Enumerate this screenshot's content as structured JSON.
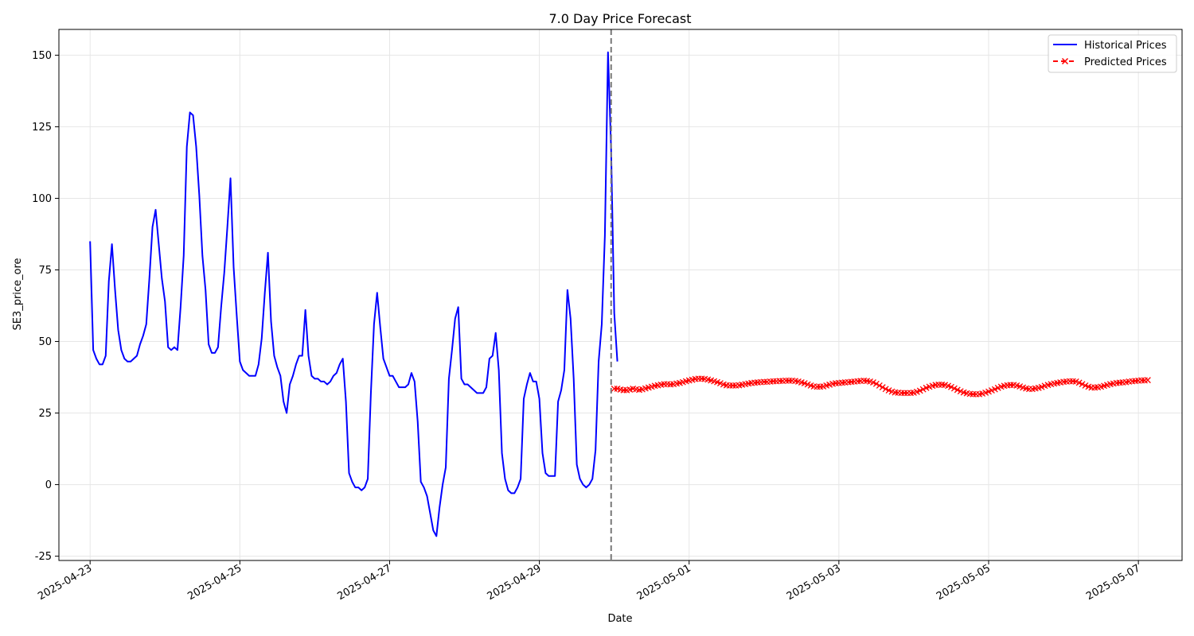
{
  "chart_data": {
    "type": "line",
    "title": "7.0 Day Price Forecast",
    "xlabel": "Date",
    "ylabel": "SE3_price_ore",
    "x_range": [
      "2025-04-22T14:00",
      "2025-05-07T14:00"
    ],
    "ylim": [
      -26.5,
      159
    ],
    "y_ticks": [
      -25,
      0,
      25,
      50,
      75,
      100,
      125,
      150
    ],
    "x_ticks": [
      "2025-04-23",
      "2025-04-25",
      "2025-04-27",
      "2025-04-29",
      "2025-05-01",
      "2025-05-03",
      "2025-05-05",
      "2025-05-07"
    ],
    "grid": true,
    "legend_position": "top-right",
    "forecast_start": "2025-04-29T23:00",
    "colors": {
      "historical": "#0000ff",
      "predicted": "#ff0000",
      "divider": "#777777",
      "grid": "#e6e6e6"
    },
    "series": [
      {
        "name": "Historical Prices",
        "style": "solid",
        "start": "2025-04-23T00:00",
        "step_hours": 1,
        "values": [
          85,
          47,
          44,
          42,
          42,
          45,
          71,
          84,
          68,
          54,
          47,
          44,
          43,
          43,
          44,
          45,
          49,
          52,
          56,
          72,
          90,
          96,
          84,
          72,
          64,
          48,
          47,
          48,
          47,
          62,
          80,
          118,
          130,
          129,
          118,
          101,
          80,
          68,
          49,
          46,
          46,
          48,
          62,
          74,
          90,
          107,
          76,
          59,
          43,
          40,
          39,
          38,
          38,
          38,
          42,
          51,
          67,
          81,
          57,
          45,
          41,
          38,
          29,
          25,
          35,
          38,
          42,
          45,
          45,
          61,
          45,
          38,
          37,
          37,
          36,
          36,
          35,
          36,
          38,
          39,
          42,
          44,
          29,
          4,
          1,
          -1,
          -1,
          -2,
          -1,
          2,
          32,
          56,
          67,
          55,
          44,
          41,
          38,
          38,
          36,
          34,
          34,
          34,
          35,
          39,
          36,
          22,
          1,
          -1,
          -4,
          -10,
          -16,
          -18,
          -8,
          0,
          6,
          37,
          47,
          58,
          62,
          37,
          35,
          35,
          34,
          33,
          32,
          32,
          32,
          34,
          44,
          45,
          53,
          40,
          11,
          2,
          -2,
          -3,
          -3,
          -1,
          2,
          30,
          35,
          39,
          36,
          36,
          30,
          11,
          4,
          3,
          3,
          3,
          29,
          33,
          40,
          68,
          58,
          37,
          7,
          2,
          0,
          -1,
          0,
          2,
          12,
          43,
          56,
          87,
          151,
          117,
          60,
          43
        ]
      },
      {
        "name": "Predicted Prices",
        "style": "dashed",
        "marker": "x",
        "start": "2025-04-30T00:00",
        "step_hours": 1,
        "values": [
          33.5,
          33.5,
          33.2,
          33.0,
          33.0,
          33.2,
          33.5,
          33.3,
          33.1,
          33.3,
          33.6,
          33.9,
          34.2,
          34.5,
          34.7,
          34.9,
          35.1,
          35.1,
          35.0,
          35.1,
          35.3,
          35.5,
          35.8,
          36.1,
          36.4,
          36.6,
          36.9,
          37.0,
          37.0,
          36.9,
          36.7,
          36.4,
          36.1,
          35.8,
          35.4,
          35.0,
          34.7,
          34.6,
          34.6,
          34.6,
          34.7,
          34.9,
          35.1,
          35.3,
          35.5,
          35.6,
          35.7,
          35.8,
          35.9,
          35.9,
          36.0,
          36.1,
          36.1,
          36.2,
          36.2,
          36.3,
          36.3,
          36.3,
          36.2,
          36.0,
          35.7,
          35.4,
          35.0,
          34.6,
          34.3,
          34.2,
          34.2,
          34.3,
          34.6,
          34.9,
          35.2,
          35.4,
          35.5,
          35.6,
          35.7,
          35.8,
          35.9,
          36.0,
          36.1,
          36.2,
          36.3,
          36.2,
          36.0,
          35.7,
          35.2,
          34.6,
          34.0,
          33.4,
          32.9,
          32.5,
          32.2,
          32.1,
          32.0,
          32.0,
          32.0,
          32.0,
          32.1,
          32.4,
          32.8,
          33.3,
          33.8,
          34.2,
          34.5,
          34.8,
          34.9,
          34.9,
          34.8,
          34.5,
          34.1,
          33.6,
          33.1,
          32.6,
          32.2,
          31.9,
          31.7,
          31.6,
          31.6,
          31.6,
          31.8,
          32.1,
          32.5,
          32.9,
          33.3,
          33.8,
          34.2,
          34.5,
          34.7,
          34.8,
          34.8,
          34.6,
          34.3,
          33.9,
          33.6,
          33.4,
          33.4,
          33.6,
          33.8,
          34.1,
          34.5,
          34.8,
          35.1,
          35.3,
          35.5,
          35.7,
          35.9,
          36.0,
          36.1,
          36.1,
          36.0,
          35.6,
          35.1,
          34.6,
          34.2,
          33.9,
          33.9,
          34.0,
          34.2,
          34.5,
          34.8,
          35.1,
          35.3,
          35.5,
          35.6,
          35.7,
          35.8,
          36.0,
          36.1,
          36.2,
          36.3,
          36.4,
          36.4,
          36.5
        ]
      }
    ]
  }
}
